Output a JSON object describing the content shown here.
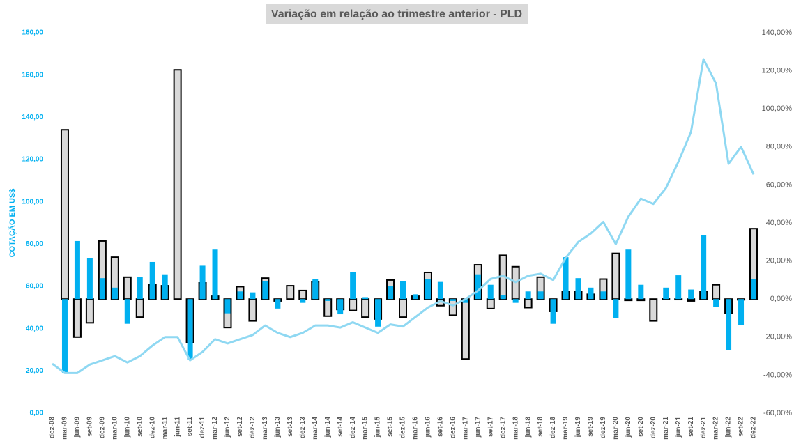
{
  "chart_data": {
    "type": "bar_line",
    "title": "Variação em relação ao trimestre anterior - PLD",
    "y_label": "COTAÇÃO EM US$",
    "categories": [
      "dez-08",
      "mar-09",
      "jun-09",
      "set-09",
      "dez-09",
      "mar-10",
      "jun-10",
      "set-10",
      "dez-10",
      "mar-11",
      "jun-11",
      "set-11",
      "dez-11",
      "mar-12",
      "jun-12",
      "set-12",
      "dez-12",
      "mar-13",
      "jun-13",
      "set-13",
      "dez-13",
      "mar-14",
      "jun-14",
      "set-14",
      "dez-14",
      "mar-15",
      "jun-15",
      "set-15",
      "dez-15",
      "mar-16",
      "jun-16",
      "set-16",
      "dez-16",
      "mar-17",
      "jun-17",
      "set-17",
      "dez-17",
      "mar-18",
      "jun-18",
      "set-18",
      "dez-18",
      "mar-19",
      "jun-19",
      "set-19",
      "dez-19",
      "mar-20",
      "jun-20",
      "set-20",
      "dez-20",
      "mar-21",
      "jun-21",
      "set-21",
      "dez-21",
      "mar-22",
      "jun-22",
      "set-22",
      "dez-22"
    ],
    "series": [
      {
        "type": "bar",
        "axis": "y2",
        "color": "#d9d9d9",
        "edge": "#000000",
        "values": [
          null,
          89,
          -20,
          -12.5,
          30.5,
          22,
          11.5,
          -9.5,
          7.5,
          7,
          120.5,
          -23,
          8.5,
          1.5,
          -15,
          6.5,
          -11.5,
          11,
          -1,
          7,
          4.5,
          9,
          -9,
          -5.5,
          -6,
          -9.5,
          -10.5,
          10,
          -9.5,
          1.5,
          14,
          -3.5,
          -8.5,
          -31.5,
          18,
          -5,
          23,
          17,
          -4.5,
          11.5,
          -6.5,
          4,
          4,
          2.5,
          10.5,
          24,
          -0.7,
          -0.7,
          -11.5,
          0.4,
          -0.3,
          -1,
          4,
          7.5,
          -7.5,
          -0.4,
          37
        ]
      },
      {
        "type": "bar",
        "axis": "y2",
        "color": "#00b0f0",
        "values": [
          null,
          -39,
          30.5,
          21.5,
          11,
          6,
          -13,
          11.5,
          19.5,
          13,
          null,
          -32,
          17.5,
          26,
          -7.5,
          4,
          3.5,
          9.5,
          -5,
          null,
          -2,
          10.5,
          -1,
          -8,
          14,
          1,
          -14.5,
          7,
          9.5,
          2.5,
          10.5,
          9,
          -1,
          -2,
          13,
          7.5,
          2,
          -2,
          4,
          4,
          -13,
          22,
          11,
          6,
          4,
          -10,
          26,
          7.5,
          null,
          6,
          12.5,
          5,
          33.5,
          -4,
          -27,
          -13.5,
          10.5
        ]
      },
      {
        "type": "line",
        "axis": "y",
        "color": "#8fd8f2",
        "values": [
          23.4,
          19,
          19,
          23,
          25,
          27,
          24,
          27,
          32,
          36,
          36,
          25,
          29,
          35,
          33,
          35,
          37,
          41.5,
          38,
          36,
          38,
          41.5,
          41.5,
          40.5,
          43,
          40.5,
          38,
          42,
          41,
          45.5,
          50,
          53,
          51,
          54,
          58,
          63.5,
          65,
          62,
          65,
          66,
          63,
          73.5,
          81,
          85,
          90.5,
          80,
          93,
          101.5,
          99,
          106.5,
          119,
          133,
          167.5,
          156,
          118,
          126,
          113
        ]
      }
    ],
    "ylim": [
      0,
      180
    ],
    "yticks": [
      {
        "value": 0,
        "label": "0,00"
      },
      {
        "value": 20,
        "label": "20,00"
      },
      {
        "value": 40,
        "label": "40,00"
      },
      {
        "value": 60,
        "label": "60,00"
      },
      {
        "value": 80,
        "label": "80,00"
      },
      {
        "value": 100,
        "label": "100,00"
      },
      {
        "value": 120,
        "label": "120,00"
      },
      {
        "value": 140,
        "label": "140,00"
      },
      {
        "value": 160,
        "label": "160,00"
      },
      {
        "value": 180,
        "label": "180,00"
      }
    ],
    "y2lim": [
      -60,
      140
    ],
    "y2ticks": [
      {
        "value": -60,
        "label": "-60,00%"
      },
      {
        "value": -40,
        "label": "-40,00%"
      },
      {
        "value": -20,
        "label": "-20,00%"
      },
      {
        "value": 0,
        "label": "0,00%"
      },
      {
        "value": 20,
        "label": "20,00%"
      },
      {
        "value": 40,
        "label": "40,00%"
      },
      {
        "value": 60,
        "label": "60,00%"
      },
      {
        "value": 80,
        "label": "80,00%"
      },
      {
        "value": 100,
        "label": "100,00%"
      },
      {
        "value": 120,
        "label": "120,00%"
      },
      {
        "value": 140,
        "label": "140,00%"
      }
    ]
  }
}
